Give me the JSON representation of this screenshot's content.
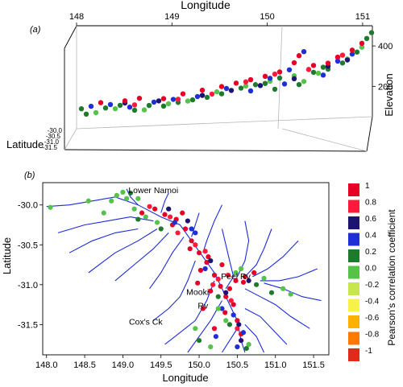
{
  "palette": {
    "1": "#e60026",
    "0.8": "#ff1a3c",
    "0.6": "#1c1470",
    "0.4": "#1f2fd6",
    "0.2": "#1f7a2e",
    "0.0": "#55c24a",
    "-0.2": "#c8e64a",
    "-0.4": "#f7f24a",
    "-0.6": "#ffb000",
    "-0.8": "#ff7a00",
    "-1": "#e02a1c",
    "river": "#1a2bd8"
  },
  "chart_data": [
    {
      "type": "scatter",
      "panel_label": "(a)",
      "xlabel": "Longitude",
      "ylabel": "Elevation",
      "zlabel": "Latitude",
      "x_ticks": [
        "148",
        "149",
        "150",
        "151"
      ],
      "z_ticks": [
        "200",
        "400"
      ],
      "y_ticks": [
        "-30.0",
        "-30.5",
        "-31.0",
        "-31.5"
      ],
      "xlim": [
        148,
        151
      ],
      "zlim": [
        50,
        500
      ],
      "series": [
        {
          "color_class": "0.2",
          "points": [
            [
              148.05,
              140
            ],
            [
              148.1,
              115
            ],
            [
              148.3,
              140
            ],
            [
              148.45,
              150
            ],
            [
              148.6,
              125
            ],
            [
              148.75,
              145
            ],
            [
              148.9,
              140
            ],
            [
              149.05,
              155
            ],
            [
              149.2,
              165
            ],
            [
              149.35,
              175
            ],
            [
              149.5,
              190
            ],
            [
              149.7,
              215
            ],
            [
              149.85,
              230
            ],
            [
              150.05,
              205
            ],
            [
              150.1,
              260
            ],
            [
              150.3,
              225
            ],
            [
              150.45,
              285
            ],
            [
              150.6,
              300
            ],
            [
              150.75,
              330
            ],
            [
              150.9,
              385
            ],
            [
              151.0,
              455
            ],
            [
              151.05,
              485
            ],
            [
              150.55,
              310
            ],
            [
              149.95,
              235
            ]
          ]
        },
        {
          "color_class": "0.0",
          "points": [
            [
              148.2,
              120
            ],
            [
              148.4,
              135
            ],
            [
              148.7,
              125
            ],
            [
              148.95,
              150
            ],
            [
              149.15,
              160
            ],
            [
              149.45,
              200
            ],
            [
              149.75,
              225
            ],
            [
              150.0,
              245
            ],
            [
              150.25,
              270
            ],
            [
              150.5,
              280
            ],
            [
              150.8,
              350
            ],
            [
              150.95,
              410
            ],
            [
              150.35,
              240
            ]
          ]
        },
        {
          "color_class": "0.4",
          "points": [
            [
              148.15,
              150
            ],
            [
              148.35,
              155
            ],
            [
              148.55,
              140
            ],
            [
              148.8,
              160
            ],
            [
              149.0,
              170
            ],
            [
              149.25,
              180
            ],
            [
              149.55,
              215
            ],
            [
              149.8,
              200
            ],
            [
              150.0,
              260
            ],
            [
              150.2,
              300
            ],
            [
              150.35,
              390
            ],
            [
              150.55,
              270
            ],
            [
              150.7,
              340
            ],
            [
              150.85,
              375
            ],
            [
              150.15,
              230
            ]
          ]
        },
        {
          "color_class": "0.6",
          "points": [
            [
              148.5,
              160
            ],
            [
              148.85,
              165
            ],
            [
              149.3,
              185
            ],
            [
              149.6,
              205
            ],
            [
              149.9,
              225
            ],
            [
              150.25,
              255
            ],
            [
              150.6,
              315
            ],
            [
              150.8,
              345
            ]
          ]
        },
        {
          "color_class": "1",
          "points": [
            [
              148.25,
              165
            ],
            [
              148.5,
              170
            ],
            [
              148.65,
              180
            ],
            [
              148.9,
              175
            ],
            [
              149.1,
              195
            ],
            [
              149.3,
              210
            ],
            [
              149.5,
              225
            ],
            [
              149.65,
              240
            ],
            [
              149.8,
              255
            ],
            [
              149.95,
              270
            ],
            [
              150.1,
              290
            ],
            [
              150.25,
              335
            ],
            [
              150.3,
              370
            ],
            [
              150.45,
              320
            ],
            [
              150.6,
              330
            ],
            [
              150.7,
              360
            ],
            [
              150.85,
              395
            ],
            [
              150.95,
              430
            ]
          ]
        },
        {
          "color_class": "0.8",
          "points": [
            [
              148.6,
              150
            ],
            [
              149.05,
              170
            ],
            [
              149.4,
              190
            ],
            [
              149.75,
              245
            ],
            [
              150.05,
              280
            ],
            [
              150.4,
              300
            ],
            [
              150.75,
              370
            ]
          ]
        }
      ]
    },
    {
      "type": "scatter",
      "panel_label": "(b)",
      "xlabel": "Longitude",
      "ylabel": "Latitude",
      "x_ticks": [
        "148.0",
        "148.5",
        "149.0",
        "149.5",
        "150.0",
        "150.5",
        "151.0",
        "151.5"
      ],
      "y_ticks": [
        "-30.0",
        "-30.5",
        "-31.0",
        "-31.5"
      ],
      "xlim": [
        147.95,
        151.7
      ],
      "ylim": [
        -31.88,
        -29.72
      ],
      "annotations": [
        {
          "text": "Lower Namoi",
          "x": 149.4,
          "y": -29.85
        },
        {
          "text": "Peel Rv",
          "x": 150.48,
          "y": -30.93
        },
        {
          "text": "Mooki",
          "x": 149.98,
          "y": -31.13
        },
        {
          "text": "Rv",
          "x": 150.05,
          "y": -31.3
        },
        {
          "text": "Cox's Ck",
          "x": 149.3,
          "y": -31.5
        }
      ],
      "series": [
        {
          "color_class": "1",
          "points": [
            [
              149.55,
              -30.12
            ],
            [
              149.7,
              -30.18
            ],
            [
              149.82,
              -30.3
            ],
            [
              149.9,
              -30.45
            ],
            [
              150.0,
              -30.6
            ],
            [
              150.1,
              -30.72
            ],
            [
              150.2,
              -30.88
            ],
            [
              150.28,
              -31.02
            ],
            [
              150.35,
              -31.15
            ],
            [
              150.45,
              -31.25
            ],
            [
              150.5,
              -31.45
            ],
            [
              150.55,
              -31.62
            ],
            [
              149.25,
              -30.1
            ],
            [
              149.42,
              -30.05
            ],
            [
              150.6,
              -30.9
            ],
            [
              150.72,
              -30.85
            ],
            [
              150.02,
              -30.82
            ],
            [
              149.98,
              -30.98
            ],
            [
              150.15,
              -31.08
            ],
            [
              150.4,
              -31.05
            ],
            [
              150.05,
              -31.3
            ],
            [
              150.2,
              -31.55
            ],
            [
              150.48,
              -30.95
            ],
            [
              149.65,
              -30.25
            ],
            [
              149.88,
              -30.55
            ],
            [
              150.3,
              -30.75
            ],
            [
              150.58,
              -30.97
            ],
            [
              150.34,
              -31.35
            ],
            [
              149.78,
              -30.1
            ],
            [
              150.12,
              -30.65
            ]
          ]
        },
        {
          "color_class": "0.8",
          "points": [
            [
              149.35,
              -30.02
            ],
            [
              149.62,
              -30.15
            ],
            [
              149.95,
              -30.5
            ],
            [
              150.08,
              -30.58
            ],
            [
              150.25,
              -30.93
            ],
            [
              150.42,
              -31.2
            ],
            [
              150.5,
              -31.55
            ],
            [
              149.72,
              -30.35
            ],
            [
              150.18,
              -31.0
            ],
            [
              150.38,
              -30.88
            ]
          ]
        },
        {
          "color_class": "0.6",
          "points": [
            [
              149.6,
              -30.05
            ],
            [
              149.85,
              -30.2
            ],
            [
              150.15,
              -30.7
            ],
            [
              150.35,
              -31.1
            ],
            [
              150.52,
              -31.5
            ],
            [
              150.55,
              -31.7
            ],
            [
              150.65,
              -30.95
            ]
          ]
        },
        {
          "color_class": "0.4",
          "points": [
            [
              149.68,
              -30.22
            ],
            [
              149.95,
              -30.35
            ],
            [
              150.08,
              -30.8
            ],
            [
              150.3,
              -31.3
            ],
            [
              150.45,
              -31.38
            ],
            [
              150.58,
              -31.6
            ],
            [
              150.5,
              -31.78
            ],
            [
              150.22,
              -31.65
            ],
            [
              149.9,
              -30.3
            ]
          ]
        },
        {
          "color_class": "0.2",
          "points": [
            [
              149.1,
              -29.85
            ],
            [
              149.2,
              -30.18
            ],
            [
              149.5,
              -30.3
            ],
            [
              150.25,
              -31.15
            ],
            [
              150.62,
              -31.8
            ],
            [
              150.0,
              -31.7
            ],
            [
              150.75,
              -31.0
            ],
            [
              150.95,
              -31.1
            ],
            [
              150.4,
              -31.5
            ]
          ]
        },
        {
          "color_class": "0.0",
          "points": [
            [
              148.05,
              -30.03
            ],
            [
              148.85,
              -29.95
            ],
            [
              148.92,
              -29.88
            ],
            [
              149.0,
              -29.84
            ],
            [
              149.05,
              -29.92
            ],
            [
              149.15,
              -30.05
            ],
            [
              148.55,
              -29.95
            ],
            [
              148.75,
              -30.1
            ],
            [
              149.3,
              -30.15
            ],
            [
              149.45,
              -30.22
            ],
            [
              150.48,
              -30.85
            ],
            [
              150.55,
              -30.8
            ],
            [
              150.85,
              -30.92
            ],
            [
              151.1,
              -31.05
            ],
            [
              151.2,
              -31.12
            ],
            [
              150.35,
              -31.45
            ],
            [
              150.15,
              -31.78
            ],
            [
              149.95,
              -31.55
            ],
            [
              150.65,
              -31.75
            ],
            [
              150.25,
              -31.3
            ],
            [
              149.2,
              -29.92
            ]
          ]
        }
      ]
    }
  ],
  "legend": {
    "title": "Pearson's correlation coefficient",
    "entries": [
      {
        "label": "1",
        "color_class": "1"
      },
      {
        "label": "0.8",
        "color_class": "0.8"
      },
      {
        "label": "0.6",
        "color_class": "0.6"
      },
      {
        "label": "0.4",
        "color_class": "0.4"
      },
      {
        "label": "0.2",
        "color_class": "0.2"
      },
      {
        "label": "0.0",
        "color_class": "0.0"
      },
      {
        "label": "-0.2",
        "color_class": "-0.2"
      },
      {
        "label": "-0.4",
        "color_class": "-0.4"
      },
      {
        "label": "-0.6",
        "color_class": "-0.6"
      },
      {
        "label": "-0.8",
        "color_class": "-0.8"
      },
      {
        "label": "-1",
        "color_class": "-1"
      }
    ]
  }
}
